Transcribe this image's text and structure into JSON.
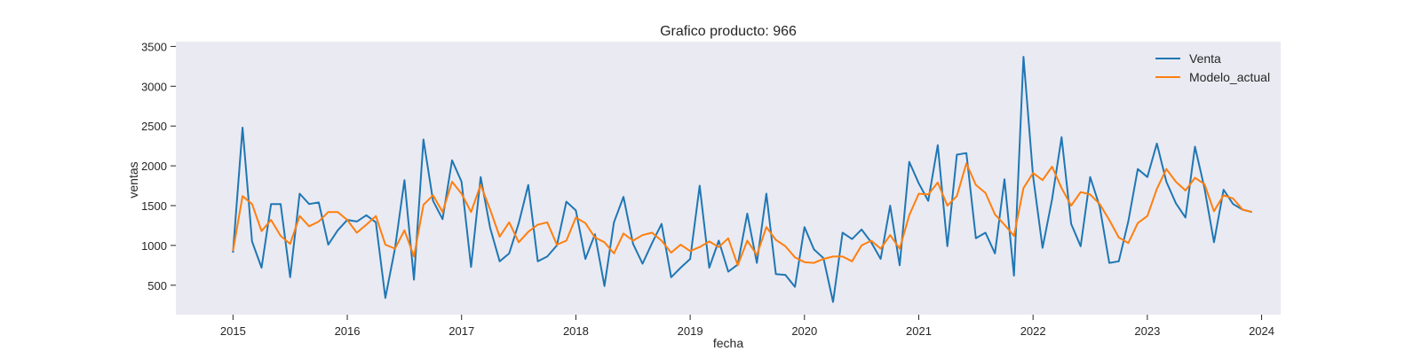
{
  "chart_data": {
    "type": "line",
    "title": "Grafico producto: 966",
    "xlabel": "fecha",
    "ylabel": "ventas",
    "xlim": [
      "2014-07",
      "2024-03"
    ],
    "ylim": [
      130,
      3560
    ],
    "grid": false,
    "legend_position": "top-right",
    "x_ticks": [
      "2015",
      "2016",
      "2017",
      "2018",
      "2019",
      "2020",
      "2021",
      "2022",
      "2023",
      "2024"
    ],
    "y_ticks": [
      500,
      1000,
      1500,
      2000,
      2500,
      3000,
      3500
    ],
    "x": [
      "2015-01",
      "2015-02",
      "2015-03",
      "2015-04",
      "2015-05",
      "2015-06",
      "2015-07",
      "2015-08",
      "2015-09",
      "2015-10",
      "2015-11",
      "2015-12",
      "2016-01",
      "2016-02",
      "2016-03",
      "2016-04",
      "2016-05",
      "2016-06",
      "2016-07",
      "2016-08",
      "2016-09",
      "2016-10",
      "2016-11",
      "2016-12",
      "2017-01",
      "2017-02",
      "2017-03",
      "2017-04",
      "2017-05",
      "2017-06",
      "2017-07",
      "2017-08",
      "2017-09",
      "2017-10",
      "2017-11",
      "2017-12",
      "2018-01",
      "2018-02",
      "2018-03",
      "2018-04",
      "2018-05",
      "2018-06",
      "2018-07",
      "2018-08",
      "2018-09",
      "2018-10",
      "2018-11",
      "2018-12",
      "2019-01",
      "2019-02",
      "2019-03",
      "2019-04",
      "2019-05",
      "2019-06",
      "2019-07",
      "2019-08",
      "2019-09",
      "2019-10",
      "2019-11",
      "2019-12",
      "2020-01",
      "2020-02",
      "2020-03",
      "2020-04",
      "2020-05",
      "2020-06",
      "2020-07",
      "2020-08",
      "2020-09",
      "2020-10",
      "2020-11",
      "2020-12",
      "2021-01",
      "2021-02",
      "2021-03",
      "2021-04",
      "2021-05",
      "2021-06",
      "2021-07",
      "2021-08",
      "2021-09",
      "2021-10",
      "2021-11",
      "2021-12",
      "2022-01",
      "2022-02",
      "2022-03",
      "2022-04",
      "2022-05",
      "2022-06",
      "2022-07",
      "2022-08",
      "2022-09",
      "2022-10",
      "2022-11",
      "2022-12",
      "2023-01",
      "2023-02",
      "2023-03",
      "2023-04",
      "2023-05",
      "2023-06",
      "2023-07",
      "2023-08",
      "2023-09",
      "2023-10",
      "2023-11",
      "2023-12"
    ],
    "series": [
      {
        "name": "Venta",
        "color": "#1f77b4",
        "values": [
          910,
          2480,
          1050,
          720,
          1520,
          1520,
          600,
          1650,
          1520,
          1540,
          1010,
          1190,
          1320,
          1300,
          1380,
          1290,
          340,
          960,
          1820,
          570,
          2330,
          1560,
          1330,
          2070,
          1800,
          730,
          1860,
          1220,
          800,
          900,
          1280,
          1760,
          800,
          860,
          1000,
          1550,
          1440,
          830,
          1140,
          490,
          1290,
          1610,
          1020,
          770,
          1030,
          1270,
          600,
          720,
          830,
          1750,
          720,
          1060,
          670,
          760,
          1400,
          780,
          1650,
          640,
          630,
          480,
          1230,
          950,
          840,
          290,
          1160,
          1080,
          1200,
          1040,
          830,
          1500,
          750,
          2050,
          1780,
          1560,
          2260,
          990,
          2140,
          2160,
          1090,
          1160,
          900,
          1830,
          620,
          3370,
          1870,
          970,
          1580,
          2360,
          1270,
          990,
          1860,
          1490,
          780,
          800,
          1300,
          1960,
          1860,
          2280,
          1800,
          1530,
          1350,
          2240,
          1720,
          1040,
          1700,
          1520,
          1450,
          1420
        ]
      },
      {
        "name": "Modelo_actual",
        "color": "#ff7f0e",
        "values": [
          930,
          1620,
          1520,
          1180,
          1320,
          1120,
          1020,
          1370,
          1240,
          1300,
          1420,
          1420,
          1320,
          1160,
          1260,
          1370,
          1010,
          960,
          1190,
          860,
          1510,
          1630,
          1420,
          1800,
          1650,
          1420,
          1760,
          1450,
          1110,
          1290,
          1040,
          1170,
          1260,
          1290,
          1010,
          1060,
          1350,
          1280,
          1100,
          1040,
          900,
          1150,
          1060,
          1130,
          1160,
          1060,
          910,
          1010,
          930,
          980,
          1050,
          980,
          1090,
          750,
          1060,
          880,
          1230,
          1070,
          990,
          850,
          790,
          780,
          830,
          860,
          860,
          800,
          1000,
          1060,
          960,
          1130,
          960,
          1380,
          1650,
          1640,
          1790,
          1500,
          1620,
          2030,
          1760,
          1660,
          1390,
          1260,
          1120,
          1720,
          1910,
          1820,
          1990,
          1720,
          1500,
          1670,
          1640,
          1520,
          1320,
          1100,
          1030,
          1280,
          1370,
          1710,
          1960,
          1800,
          1690,
          1850,
          1770,
          1430,
          1630,
          1590,
          1450,
          1420
        ]
      }
    ]
  }
}
